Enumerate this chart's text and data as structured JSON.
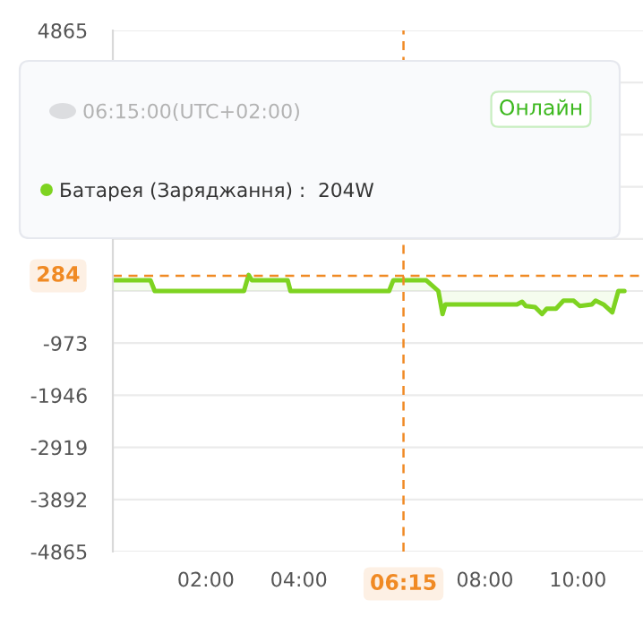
{
  "chart_data": {
    "type": "area",
    "series": [
      {
        "color": "#7ed321",
        "x": [
          0,
          0.81,
          0.9,
          2.82,
          2.92,
          2.99,
          3.76,
          3.82,
          5.94,
          6.03,
          6.74,
          7.0,
          7.09,
          7.15,
          8.69,
          8.8,
          8.88,
          9.08,
          9.23,
          9.33,
          9.53,
          9.69,
          9.91,
          10.04,
          10.3,
          10.38,
          10.55,
          10.74,
          10.87,
          11.0
        ],
        "values": [
          200,
          200,
          0,
          0,
          300,
          200,
          200,
          0,
          0,
          200,
          200,
          0,
          -430,
          -250,
          -250,
          -200,
          -280,
          -300,
          -430,
          -330,
          -330,
          -180,
          -180,
          -280,
          -250,
          -180,
          -250,
          -400,
          0,
          0
        ]
      }
    ],
    "xlim": [
      0,
      11.4
    ],
    "xticks": [
      {
        "value": 2,
        "label": "02:00"
      },
      {
        "value": 4,
        "label": "04:00"
      },
      {
        "value": 8,
        "label": "08:00"
      },
      {
        "value": 10,
        "label": "10:00"
      }
    ],
    "ylim": [
      -4865,
      4865
    ],
    "yticks": [
      4865,
      {
        "value": 3892,
        "label": null
      },
      {
        "value": 2919,
        "label": null
      },
      {
        "value": 1946,
        "label": null
      },
      {
        "value": 973,
        "label": null
      },
      {
        "value": 0,
        "label": null
      },
      -973,
      -1946,
      -2919,
      -3892,
      -4865
    ],
    "grid": "y",
    "ref_lines": [
      {
        "axis": "x",
        "value": 6.25,
        "label": "06:15",
        "color": "#f08a24",
        "line_style": "dashed"
      },
      {
        "axis": "y",
        "value": 284,
        "label": "284",
        "color": "#f08a24",
        "line_style": "dashed"
      }
    ],
    "annotations": [
      "06:15:00(UTC+02:00)",
      "Онлайн",
      "Батарея (Заряджання) :  204W"
    ]
  }
}
